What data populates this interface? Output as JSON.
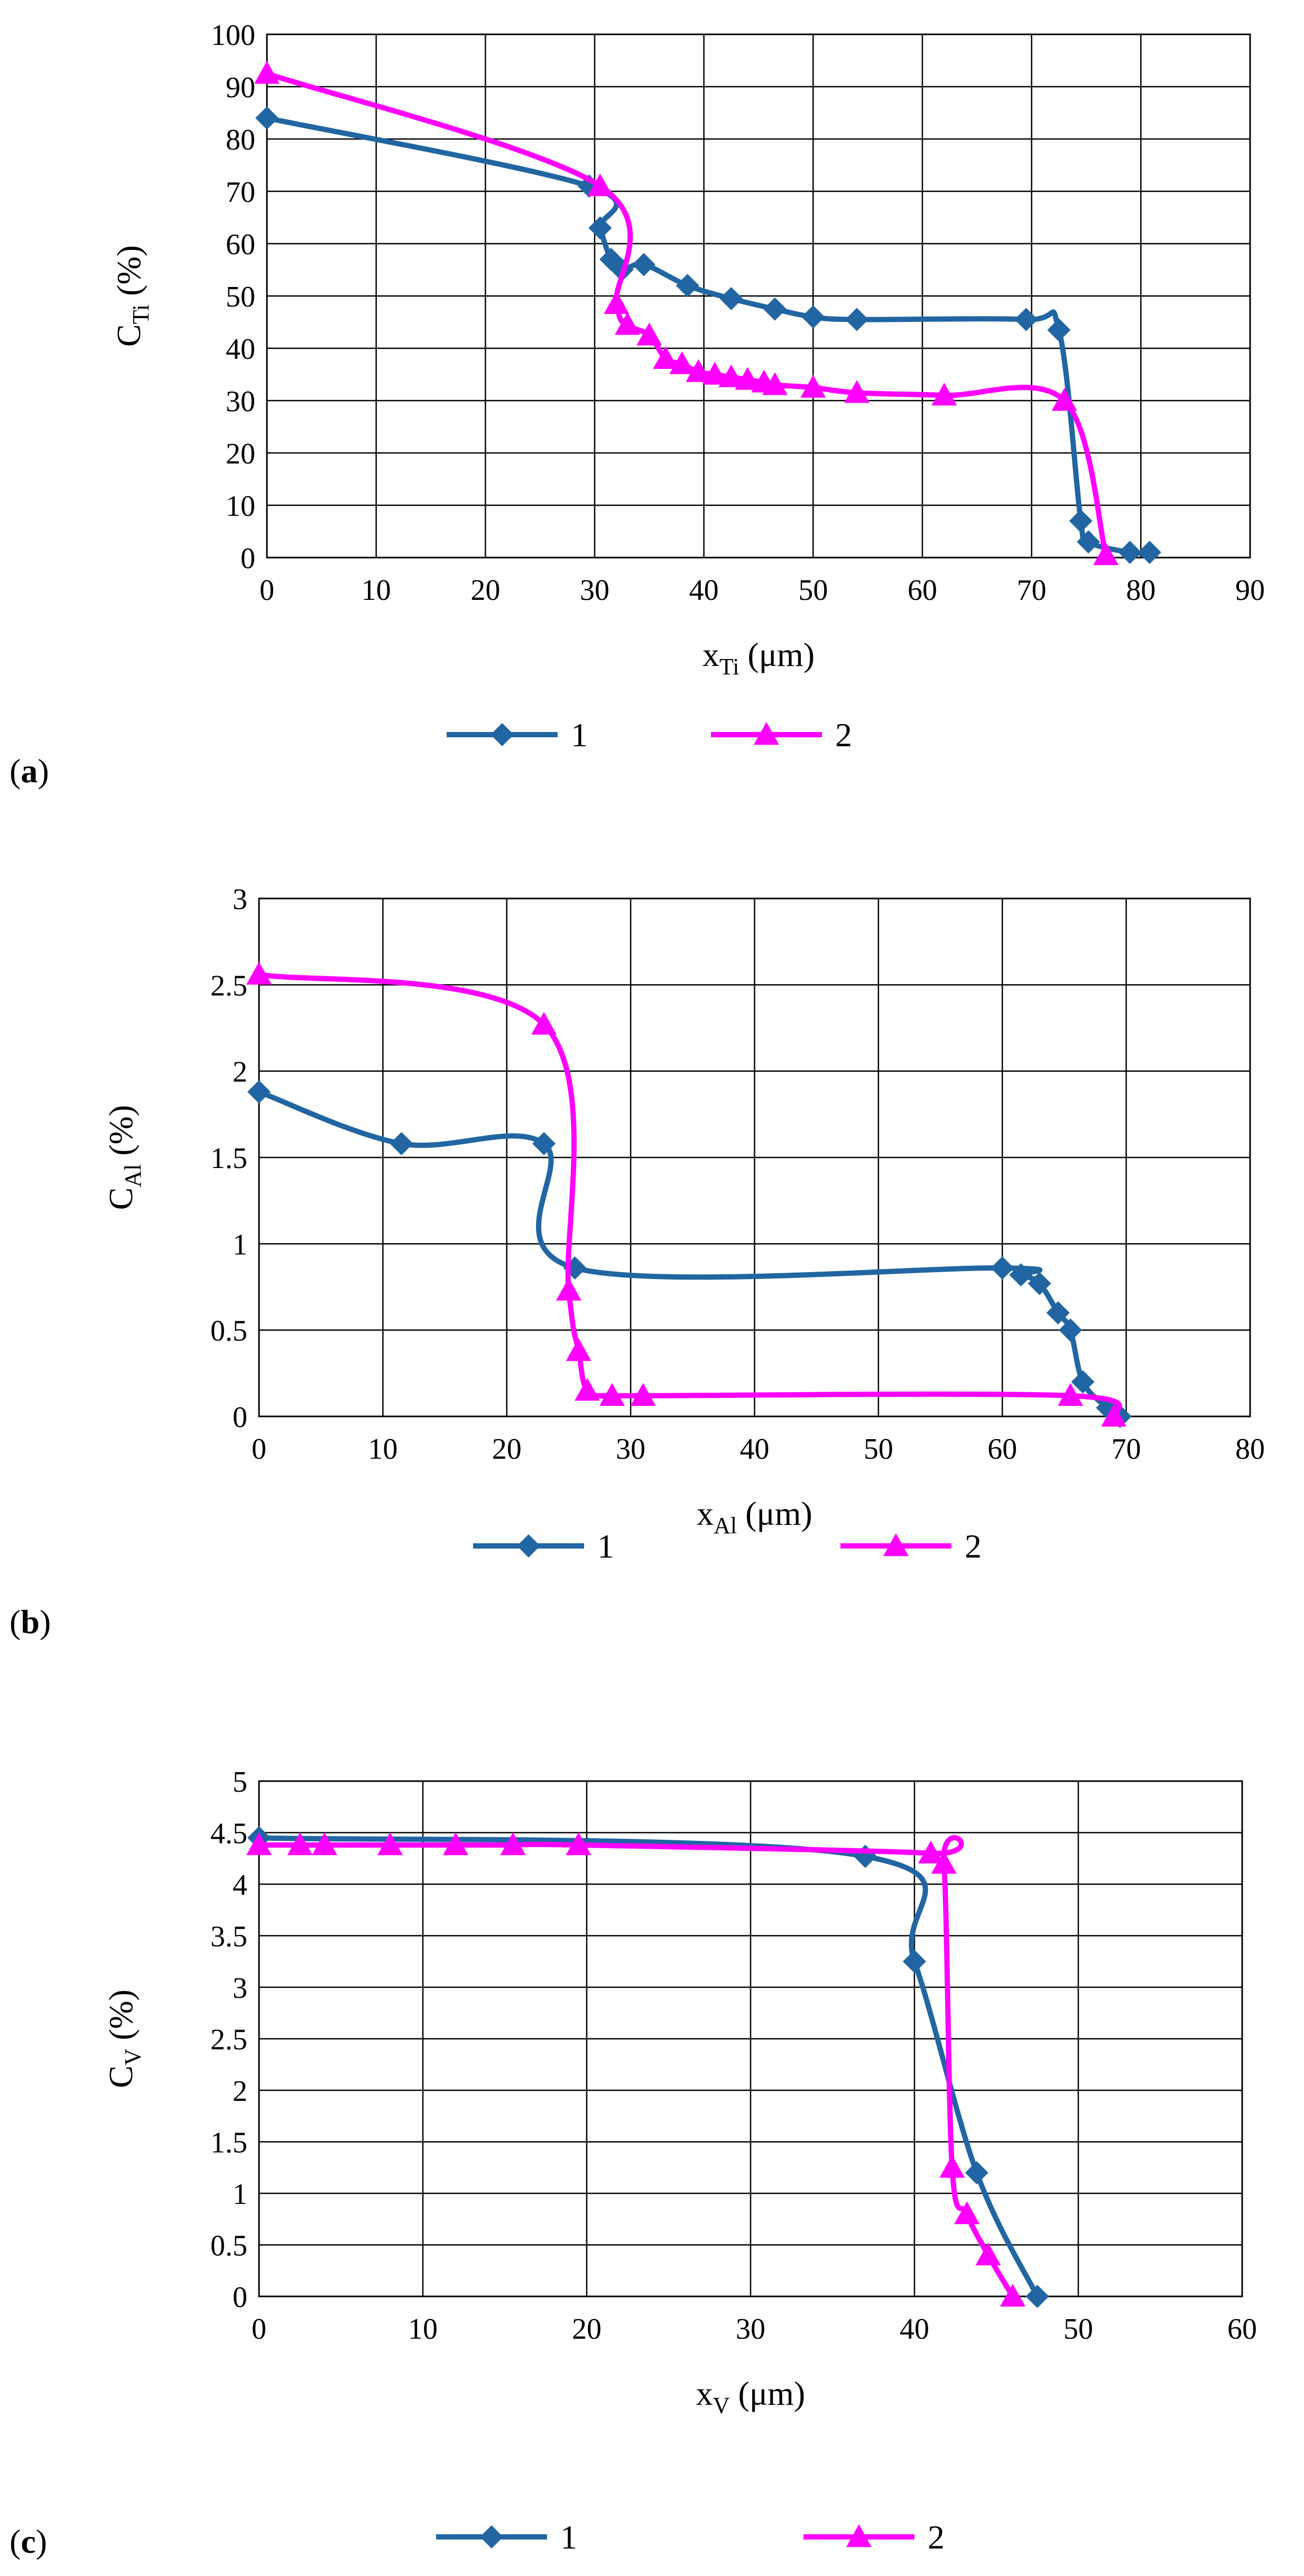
{
  "figure": {
    "panels": [
      "a",
      "b",
      "c"
    ]
  },
  "series_styles": [
    {
      "key": "1",
      "color": "#2166A2",
      "marker": "diamond"
    },
    {
      "key": "2",
      "color": "#FF00FF",
      "marker": "triangle"
    }
  ],
  "chart_data": [
    {
      "panel_label": "a",
      "type": "line",
      "xlabel": {
        "main": "x",
        "sub": "Ti",
        "unit": " (μm)"
      },
      "ylabel": {
        "main": "C",
        "sub": "Ti",
        "unit": " (%)"
      },
      "xlim": [
        0,
        90
      ],
      "ylim": [
        0,
        100
      ],
      "xticks": [
        0,
        10,
        20,
        30,
        40,
        50,
        60,
        70,
        80,
        90
      ],
      "yticks": [
        0,
        10,
        20,
        30,
        40,
        50,
        60,
        70,
        80,
        90,
        100
      ],
      "grid": true,
      "legend_position": "bottom",
      "series": [
        {
          "name": "1",
          "x": [
            0,
            29.5,
            30.5,
            31.5,
            32.5,
            34.5,
            38.5,
            42.5,
            46.5,
            50,
            54,
            69.5,
            72.5,
            74.5,
            75.2,
            79,
            80.8
          ],
          "y": [
            84,
            71,
            63,
            57,
            55,
            56,
            52,
            49.5,
            47.5,
            46,
            45.5,
            45.5,
            43.5,
            7,
            3,
            1,
            1
          ]
        },
        {
          "name": "2",
          "x": [
            0,
            30.5,
            32,
            33,
            35,
            36.5,
            38,
            39.5,
            41,
            42.5,
            44,
            45.5,
            46.5,
            50,
            54,
            62,
            73,
            76.8
          ],
          "y": [
            92.5,
            71,
            48.5,
            44.5,
            42.5,
            38,
            37,
            35.5,
            35,
            34.5,
            34,
            33.5,
            33,
            32.5,
            31.5,
            31,
            30,
            0.5
          ]
        }
      ]
    },
    {
      "panel_label": "b",
      "type": "line",
      "xlabel": {
        "main": "x",
        "sub": "Al",
        "unit": " (μm)"
      },
      "ylabel": {
        "main": "C",
        "sub": "Al",
        "unit": " (%)"
      },
      "xlim": [
        0,
        80
      ],
      "ylim": [
        0,
        3
      ],
      "xticks": [
        0,
        10,
        20,
        30,
        40,
        50,
        60,
        70,
        80
      ],
      "yticks": [
        0,
        0.5,
        1,
        1.5,
        2,
        2.5,
        3
      ],
      "grid": true,
      "legend_position": "bottom",
      "series": [
        {
          "name": "1",
          "x": [
            0,
            11.5,
            23,
            25.5,
            60,
            61.5,
            63,
            64.5,
            65.5,
            66.5,
            68.5,
            69.5
          ],
          "y": [
            1.88,
            1.58,
            1.58,
            0.86,
            0.86,
            0.82,
            0.77,
            0.6,
            0.5,
            0.2,
            0.05,
            0
          ],
          "labels_x_numeric": true
        },
        {
          "name": "2",
          "x": [
            0,
            23,
            25,
            25.8,
            26.5,
            28.5,
            31,
            65.5,
            69
          ],
          "y": [
            2.56,
            2.27,
            0.73,
            0.38,
            0.15,
            0.12,
            0.12,
            0.12,
            0
          ]
        }
      ]
    },
    {
      "panel_label": "c",
      "type": "line",
      "xlabel": {
        "main": "x",
        "sub": "V",
        "unit": " (μm)"
      },
      "ylabel": {
        "main": "C",
        "sub": "V",
        "unit": " (%)"
      },
      "xlim": [
        0,
        60
      ],
      "ylim": [
        0,
        5
      ],
      "xticks": [
        0,
        10,
        20,
        30,
        40,
        50,
        60
      ],
      "yticks": [
        0,
        0.5,
        1,
        1.5,
        2,
        2.5,
        3,
        3.5,
        4,
        4.5,
        5
      ],
      "grid": true,
      "legend_position": "bottom",
      "series": [
        {
          "name": "1",
          "x": [
            0,
            37,
            40,
            43.8,
            47.5
          ],
          "y": [
            4.45,
            4.27,
            3.25,
            1.2,
            0
          ]
        },
        {
          "name": "2",
          "x": [
            0,
            2.5,
            4,
            8,
            12,
            15.5,
            19.5,
            41,
            41.8,
            42.3,
            43.2,
            44.5,
            46
          ],
          "y": [
            4.38,
            4.38,
            4.38,
            4.38,
            4.38,
            4.38,
            4.38,
            4.3,
            4.2,
            1.25,
            0.8,
            0.4,
            0
          ]
        }
      ]
    }
  ]
}
